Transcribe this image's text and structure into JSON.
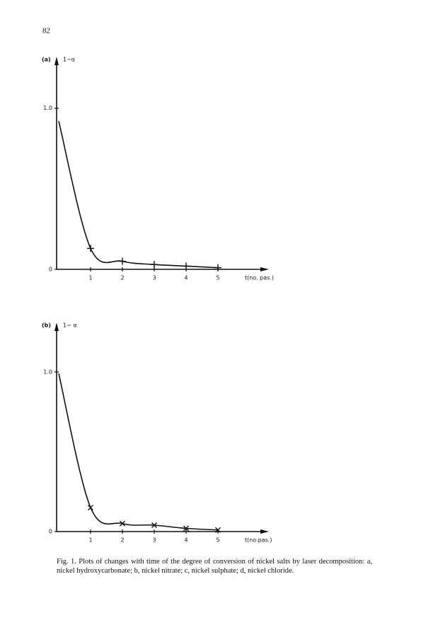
{
  "page_number": "82",
  "chart_data": [
    {
      "type": "line",
      "panel_label": "(a)",
      "y_label": "1−α",
      "x_label": "t(no. pas.)",
      "x": [
        0,
        1,
        2,
        3,
        4,
        5
      ],
      "values": [
        0.92,
        0.13,
        0.05,
        0.03,
        0.02,
        0.01
      ],
      "color": "#111",
      "marker": "plus",
      "xlim": [
        0,
        6.6
      ],
      "ylim": [
        0,
        1.32
      ],
      "xticks": [
        1,
        2,
        3,
        4,
        5
      ],
      "yticks": [
        0,
        {
          "value": 1,
          "label": "1.0"
        }
      ]
    },
    {
      "type": "line",
      "panel_label": "(b)",
      "y_label": "1− α",
      "x_label": "t(no.pas.)",
      "x": [
        0,
        1,
        2,
        3,
        4,
        5
      ],
      "values": [
        0.99,
        0.15,
        0.05,
        0.04,
        0.02,
        0.01
      ],
      "color": "#111",
      "marker": "cross",
      "xlim": [
        0,
        6.6
      ],
      "ylim": [
        0,
        1.31
      ],
      "xticks": [
        1,
        2,
        3,
        4,
        5
      ],
      "yticks": [
        0,
        {
          "value": 1,
          "label": "1.0"
        }
      ]
    }
  ],
  "caption": "Fig. 1. Plots of changes with time of the degree of conversion of nickel salts by laser decomposition: a, nickel hydroxycarbonate; b, nickel nitrate; c, nickel sulphate; d, nickel chloride."
}
